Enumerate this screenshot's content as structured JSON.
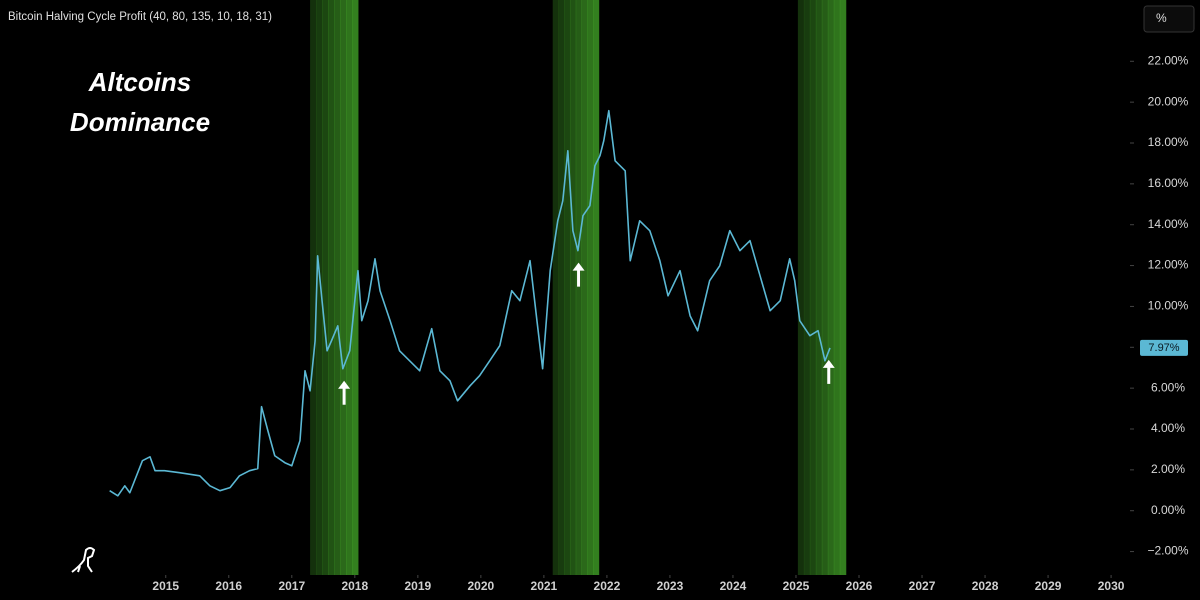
{
  "chart_data": {
    "type": "line",
    "title": "Bitcoin Halving Cycle Profit (40, 80, 135, 10, 18, 31)",
    "annotation_lines": [
      "Altcoins",
      "Dominance"
    ],
    "unit_button": "%",
    "xlim": [
      2012.37,
      2030.3
    ],
    "xticks": [
      2015,
      2016,
      2017,
      2018,
      2019,
      2020,
      2021,
      2022,
      2023,
      2024,
      2025,
      2026,
      2027,
      2028,
      2029,
      2030
    ],
    "ylim": [
      -3,
      25
    ],
    "yticks": [
      {
        "value": -2,
        "label": "−2.00%"
      },
      {
        "value": 0,
        "label": "0.00%"
      },
      {
        "value": 2,
        "label": "2.00%"
      },
      {
        "value": 4,
        "label": "4.00%"
      },
      {
        "value": 6,
        "label": "6.00%"
      },
      {
        "value": 8,
        "label": "8.00%"
      },
      {
        "value": 10,
        "label": "10.00%"
      },
      {
        "value": 12,
        "label": "12.00%"
      },
      {
        "value": 14,
        "label": "14.00%"
      },
      {
        "value": 16,
        "label": "16.00%"
      },
      {
        "value": 18,
        "label": "18.00%"
      },
      {
        "value": 20,
        "label": "20.00%"
      },
      {
        "value": 22,
        "label": "22.00%"
      }
    ],
    "grid": false,
    "band_color": "#3f9a26",
    "bands": [
      {
        "start": 2017.29,
        "end": 2018.05
      },
      {
        "start": 2021.14,
        "end": 2021.87
      },
      {
        "start": 2025.03,
        "end": 2025.79
      }
    ],
    "arrows": [
      2017.83,
      2021.55,
      2025.52
    ],
    "current_value": 7.97,
    "current_value_label": "7.97%",
    "series": [
      {
        "color": "#5bb8d4",
        "x": [
          2014.11,
          2014.24,
          2014.35,
          2014.43,
          2014.63,
          2014.75,
          2014.83,
          2014.98,
          2015.22,
          2015.54,
          2015.7,
          2015.86,
          2016.02,
          2016.17,
          2016.33,
          2016.46,
          2016.52,
          2016.62,
          2016.73,
          2016.89,
          2017.0,
          2017.13,
          2017.21,
          2017.29,
          2017.37,
          2017.41,
          2017.48,
          2017.56,
          2017.63,
          2017.73,
          2017.81,
          2017.92,
          2018.0,
          2018.05,
          2018.11,
          2018.21,
          2018.32,
          2018.4,
          2018.56,
          2018.71,
          2018.87,
          2019.03,
          2019.22,
          2019.35,
          2019.51,
          2019.63,
          2019.83,
          2019.98,
          2020.14,
          2020.3,
          2020.49,
          2020.62,
          2020.78,
          2020.89,
          2020.98,
          2021.1,
          2021.22,
          2021.3,
          2021.38,
          2021.46,
          2021.54,
          2021.62,
          2021.73,
          2021.81,
          2021.89,
          2021.95,
          2022.03,
          2022.13,
          2022.29,
          2022.37,
          2022.52,
          2022.68,
          2022.84,
          2022.97,
          2023.16,
          2023.32,
          2023.44,
          2023.63,
          2023.79,
          2023.95,
          2024.11,
          2024.27,
          2024.43,
          2024.59,
          2024.75,
          2024.9,
          2024.98,
          2025.06,
          2025.22,
          2025.35,
          2025.46,
          2025.54
        ],
        "values": [
          0.98,
          0.73,
          1.22,
          0.88,
          2.45,
          2.64,
          1.96,
          1.96,
          1.86,
          1.71,
          1.22,
          0.98,
          1.13,
          1.71,
          1.96,
          2.06,
          5.09,
          3.92,
          2.69,
          2.35,
          2.2,
          3.43,
          6.85,
          5.87,
          8.32,
          12.48,
          10.28,
          7.83,
          8.32,
          9.05,
          6.95,
          7.83,
          10.28,
          11.75,
          9.3,
          10.28,
          12.33,
          10.77,
          9.3,
          7.83,
          7.34,
          6.85,
          8.91,
          6.85,
          6.36,
          5.38,
          6.12,
          6.61,
          7.34,
          8.08,
          10.77,
          10.28,
          12.24,
          9.3,
          6.95,
          11.75,
          14.19,
          15.17,
          17.62,
          13.71,
          12.73,
          14.44,
          14.93,
          16.89,
          17.38,
          18.11,
          19.58,
          17.13,
          16.64,
          12.24,
          14.19,
          13.71,
          12.24,
          10.52,
          11.75,
          9.54,
          8.81,
          11.26,
          11.99,
          13.71,
          12.73,
          13.22,
          11.5,
          9.79,
          10.28,
          12.33,
          11.26,
          9.3,
          8.57,
          8.81,
          7.34,
          7.97
        ]
      }
    ]
  }
}
